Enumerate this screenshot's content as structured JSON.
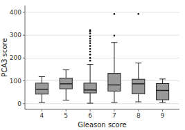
{
  "chart_data": {
    "type": "box",
    "title": "",
    "xlabel": "Gleason score",
    "ylabel": "PCA3 score",
    "x": [
      4,
      5,
      6,
      7,
      8,
      9
    ],
    "boxes": [
      {
        "q1": 42,
        "median": 63,
        "q3": 90,
        "whislo": 5,
        "whishi": 118,
        "fliers": []
      },
      {
        "q1": 65,
        "median": 87,
        "q3": 112,
        "whislo": 15,
        "whishi": 148,
        "fliers": []
      },
      {
        "q1": 47,
        "median": 60,
        "q3": 90,
        "whislo": 2,
        "whishi": 172,
        "fliers": [
          188,
          200,
          215,
          228,
          240,
          253,
          265,
          275,
          285,
          295,
          308,
          318,
          322
        ]
      },
      {
        "q1": 55,
        "median": 82,
        "q3": 133,
        "whislo": 5,
        "whishi": 268,
        "fliers": [
          298,
          393
        ]
      },
      {
        "q1": 43,
        "median": 87,
        "q3": 107,
        "whislo": 8,
        "whishi": 178,
        "fliers": [
          393
        ]
      },
      {
        "q1": 17,
        "median": 58,
        "q3": 88,
        "whislo": 5,
        "whishi": 108,
        "fliers": []
      }
    ],
    "xlim": [
      3.3,
      9.7
    ],
    "xticks": [
      4,
      5,
      6,
      7,
      8,
      9
    ],
    "ylim": [
      -25,
      430
    ],
    "yticks": [
      0,
      100,
      200,
      300,
      400
    ],
    "color": "#999999",
    "grid": true
  }
}
